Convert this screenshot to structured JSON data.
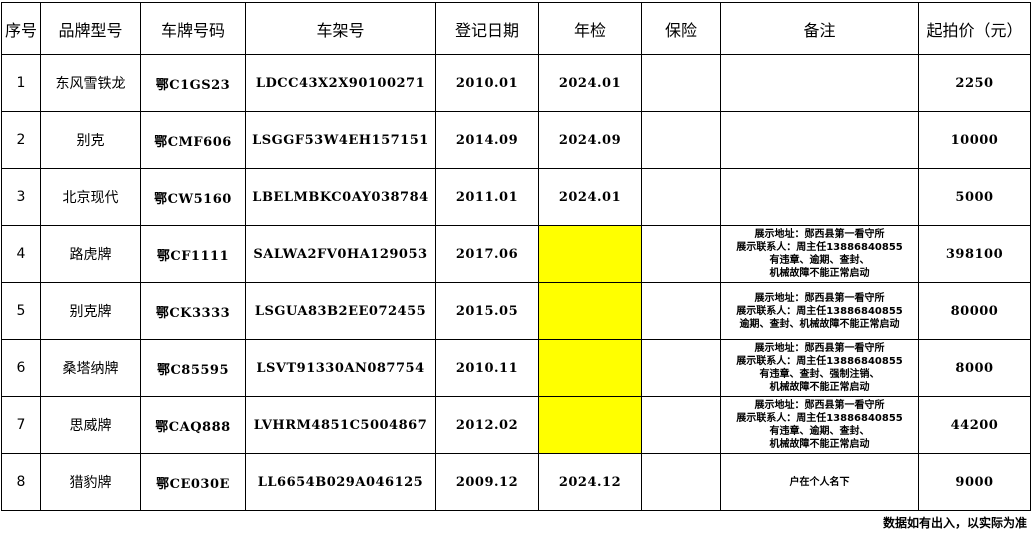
{
  "headers": [
    "序号",
    "品牌型号",
    "车牌号码",
    "车架号",
    "登记日期",
    "年检",
    "保险",
    "备注",
    "起拍价（元）"
  ],
  "rows": [
    {
      "no": "1",
      "brand": "东风雪铁龙",
      "plate": "鄂C1GS23",
      "vin": "LDCC43X2X90100271",
      "reg": "2010.01",
      "inspect": "2024.01",
      "insure": "",
      "note": [],
      "price": "2250",
      "yellow": false
    },
    {
      "no": "2",
      "brand": "别克",
      "plate": "鄂CMF606",
      "vin": "LSGGF53W4EH157151",
      "reg": "2014.09",
      "inspect": "2024.09",
      "insure": "",
      "note": [],
      "price": "10000",
      "yellow": false
    },
    {
      "no": "3",
      "brand": "北京现代",
      "plate": "鄂CW5160",
      "vin": "LBELMBKC0AY038784",
      "reg": "2011.01",
      "inspect": "2024.01",
      "insure": "",
      "note": [],
      "price": "5000",
      "yellow": false
    },
    {
      "no": "4",
      "brand": "路虎牌",
      "plate": "鄂CF1111",
      "vin": "SALWA2FV0HA129053",
      "reg": "2017.06",
      "inspect": "",
      "insure": "",
      "note": [
        "展示地址：郧西县第一看守所",
        "展示联系人：周主任13886840855",
        "有违章、逾期、查封、",
        "机械故障不能正常启动"
      ],
      "price": "398100",
      "yellow": true
    },
    {
      "no": "5",
      "brand": "别克牌",
      "plate": "鄂CK3333",
      "vin": "LSGUA83B2EE072455",
      "reg": "2015.05",
      "inspect": "",
      "insure": "",
      "note": [
        "展示地址：郧西县第一看守所",
        "展示联系人：周主任13886840855",
        "逾期、查封、机械故障不能正常启动"
      ],
      "price": "80000",
      "yellow": true
    },
    {
      "no": "6",
      "brand": "桑塔纳牌",
      "plate": "鄂C85595",
      "vin": "LSVT91330AN087754",
      "reg": "2010.11",
      "inspect": "",
      "insure": "",
      "note": [
        "展示地址：郧西县第一看守所",
        "展示联系人：周主任13886840855",
        "有违章、查封、强制注销、",
        "机械故障不能正常启动"
      ],
      "price": "8000",
      "yellow": true
    },
    {
      "no": "7",
      "brand": "思威牌",
      "plate": "鄂CAQ888",
      "vin": "LVHRM4851C5004867",
      "reg": "2012.02",
      "inspect": "",
      "insure": "",
      "note": [
        "展示地址：郧西县第一看守所",
        "展示联系人：周主任13886840855",
        "有违章、逾期、查封、",
        "机械故障不能正常启动"
      ],
      "price": "44200",
      "yellow": true
    },
    {
      "no": "8",
      "brand": "猎豹牌",
      "plate": "鄂CE030E",
      "vin": "LL6654B029A046125",
      "reg": "2009.12",
      "inspect": "2024.12",
      "insure": "",
      "note": [
        "户在个人名下"
      ],
      "price": "9000",
      "yellow": false
    }
  ],
  "footer": "数据如有出入，以实际为准",
  "colors": {
    "highlight": "#ffff00"
  }
}
